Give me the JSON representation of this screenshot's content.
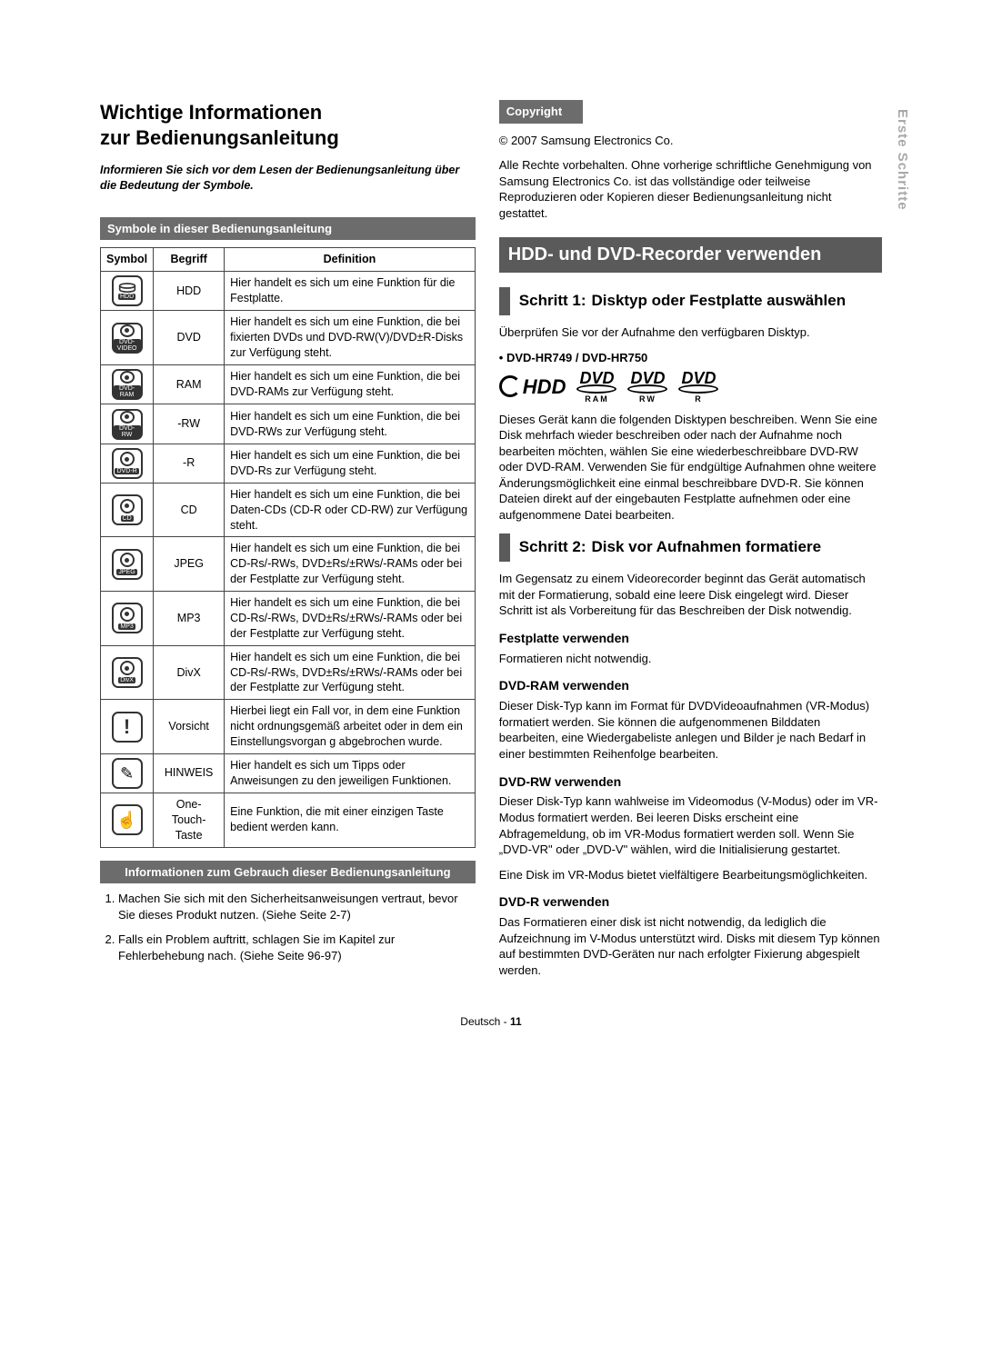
{
  "side_tab": "Erste Schritte",
  "left": {
    "title_line1": "Wichtige Informationen",
    "title_line2": "zur Bedienungsanleitung",
    "intro": "Informieren Sie sich vor dem Lesen der Bedienungsanleitung über die Bedeutung der Symbole.",
    "symbols_bar": "Symbole in dieser Bedienungsanleitung",
    "table": {
      "headers": [
        "Symbol",
        "Begriff",
        "Definition"
      ],
      "rows": [
        {
          "icon": "hdd",
          "icon_label": "HDD",
          "begriff": "HDD",
          "def": "Hier handelt es sich um eine Funktion für die Festplatte."
        },
        {
          "icon": "disc",
          "icon_label": "DVD-VIDEO",
          "begriff": "DVD",
          "def": "Hier handelt es sich um eine Funktion, die bei fixierten DVDs und DVD-RW(V)/DVD±R-Disks zur Verfügung steht."
        },
        {
          "icon": "disc",
          "icon_label": "DVD-RAM",
          "begriff": "RAM",
          "def": "Hier handelt es sich um eine Funktion, die bei DVD-RAMs zur Verfügung steht."
        },
        {
          "icon": "disc",
          "icon_label": "DVD-RW",
          "begriff": "-RW",
          "def": "Hier handelt es sich um eine Funktion, die bei DVD-RWs zur Verfügung steht."
        },
        {
          "icon": "disc",
          "icon_label": "DVD-R",
          "begriff": "-R",
          "def": "Hier handelt es sich um eine Funktion, die bei DVD-Rs zur Verfügung steht."
        },
        {
          "icon": "disc",
          "icon_label": "CD",
          "begriff": "CD",
          "def": "Hier handelt es sich um eine Funktion, die bei Daten-CDs (CD-R oder CD-RW) zur Verfügung steht."
        },
        {
          "icon": "disc",
          "icon_label": "JPEG",
          "begriff": "JPEG",
          "def": "Hier handelt es sich um eine Funktion, die bei CD-Rs/-RWs, DVD±Rs/±RWs/-RAMs oder bei der Festplatte zur Verfügung steht."
        },
        {
          "icon": "disc",
          "icon_label": "MP3",
          "begriff": "MP3",
          "def": "Hier handelt es sich um eine Funktion, die bei CD-Rs/-RWs, DVD±Rs/±RWs/-RAMs oder bei der Festplatte zur Verfügung steht."
        },
        {
          "icon": "disc",
          "icon_label": "DivX",
          "begriff": "DivX",
          "def": "Hier handelt es sich um eine Funktion, die bei CD-Rs/-RWs, DVD±Rs/±RWs/-RAMs oder bei der Festplatte zur Verfügung steht."
        },
        {
          "icon": "vorsicht",
          "icon_label": "",
          "begriff": "Vorsicht",
          "def": "Hierbei liegt ein Fall vor, in dem eine Funktion nicht ordnungsgemäß arbeitet oder in dem ein Einstellungsvorgan g abgebrochen wurde."
        },
        {
          "icon": "hinweis",
          "icon_label": "",
          "begriff": "HINWEIS",
          "def": "Hier handelt es sich um Tipps oder Anweisungen zu den jeweiligen Funktionen."
        },
        {
          "icon": "touch",
          "icon_label": "",
          "begriff": "One-Touch-Taste",
          "def": "Eine Funktion, die mit einer einzigen Taste bedient werden kann."
        }
      ]
    },
    "usage_bar": "Informationen zum Gebrauch dieser Bedienungsanleitung",
    "usage_items": [
      "Machen Sie sich mit den Sicherheitsanweisungen vertraut, bevor Sie dieses Produkt nutzen. (Siehe Seite 2-7)",
      "Falls ein Problem auftritt, schlagen Sie im Kapitel zur Fehlerbehebung nach. (Siehe Seite 96-97)"
    ]
  },
  "right": {
    "copyright_bar": "Copyright",
    "copyright_line": "© 2007 Samsung Electronics Co.",
    "copyright_body": "Alle Rechte vorbehalten. Ohne vorherige schriftliche Genehmigung von Samsung Electronics Co. ist das vollständige oder teilweise Reproduzieren oder Kopieren dieser Bedienungsanleitung nicht gestattet.",
    "band": "HDD- und DVD-Recorder verwenden",
    "step1_label": "Schritt 1:",
    "step1_title": "Disktyp oder Festplatte auswählen",
    "step1_intro": "Überprüfen Sie vor der Aufnahme den verfügbaren Disktyp.",
    "model_line": "•  DVD-HR749 / DVD-HR750",
    "logos": {
      "hdd": "HDD",
      "dvd_text": "DVD",
      "subs": [
        "RAM",
        "RW",
        "R"
      ]
    },
    "step1_body": "Dieses Gerät kann die folgenden Disktypen beschreiben. Wenn Sie eine Disk mehrfach wieder beschreiben oder nach der Aufnahme noch bearbeiten möchten, wählen Sie eine wiederbeschreibbare DVD-RW oder DVD-RAM. Verwenden Sie für endgültige Aufnahmen ohne weitere Änderungsmöglichkeit eine einmal beschreibbare DVD-R. Sie können Dateien direkt auf der eingebauten Festplatte aufnehmen oder eine aufgenommene Datei bearbeiten.",
    "step2_label": "Schritt 2:",
    "step2_title": "Disk vor Aufnahmen formatiere",
    "step2_intro": "Im Gegensatz zu einem Videorecorder beginnt das Gerät automatisch mit der Formatierung, sobald eine leere Disk eingelegt wird. Dieser Schritt ist als Vorbereitung für das Beschreiben der Disk notwendig.",
    "subs": [
      {
        "h": "Festplatte verwenden",
        "p": "Formatieren nicht notwendig."
      },
      {
        "h": "DVD-RAM verwenden",
        "p": "Dieser Disk-Typ kann im Format für DVDVideoaufnahmen (VR-Modus) formatiert werden. Sie können die aufgenommenen Bilddaten bearbeiten, eine Wiedergabeliste anlegen und Bilder je nach Bedarf in einer bestimmten Reihenfolge bearbeiten."
      },
      {
        "h": "DVD-RW verwenden",
        "p": "Dieser Disk-Typ kann wahlweise im Videomodus (V-Modus) oder im VR-Modus formatiert werden. Bei leeren Disks erscheint eine Abfragemeldung, ob im VR-Modus formatiert werden soll. Wenn Sie „DVD-VR\" oder „DVD-V\" wählen, wird die Initialisierung gestartet.\nEine Disk im VR-Modus bietet vielfältigere Bearbeitungsmöglichkeiten."
      },
      {
        "h": "DVD-R verwenden",
        "p": "Das Formatieren einer disk ist nicht notwendig, da lediglich die Aufzeichnung im V-Modus unterstützt wird. Disks mit diesem Typ können auf bestimmten DVD-Geräten nur nach erfolgter Fixierung abgespielt werden."
      }
    ]
  },
  "footer": {
    "lang": "Deutsch",
    "sep": " - ",
    "page": "11"
  },
  "colors": {
    "bar_bg": "#6c6c6c",
    "band_bg": "#5a5a5a",
    "text": "#000000",
    "side_tab": "#a8a8a8",
    "border": "#444444"
  }
}
